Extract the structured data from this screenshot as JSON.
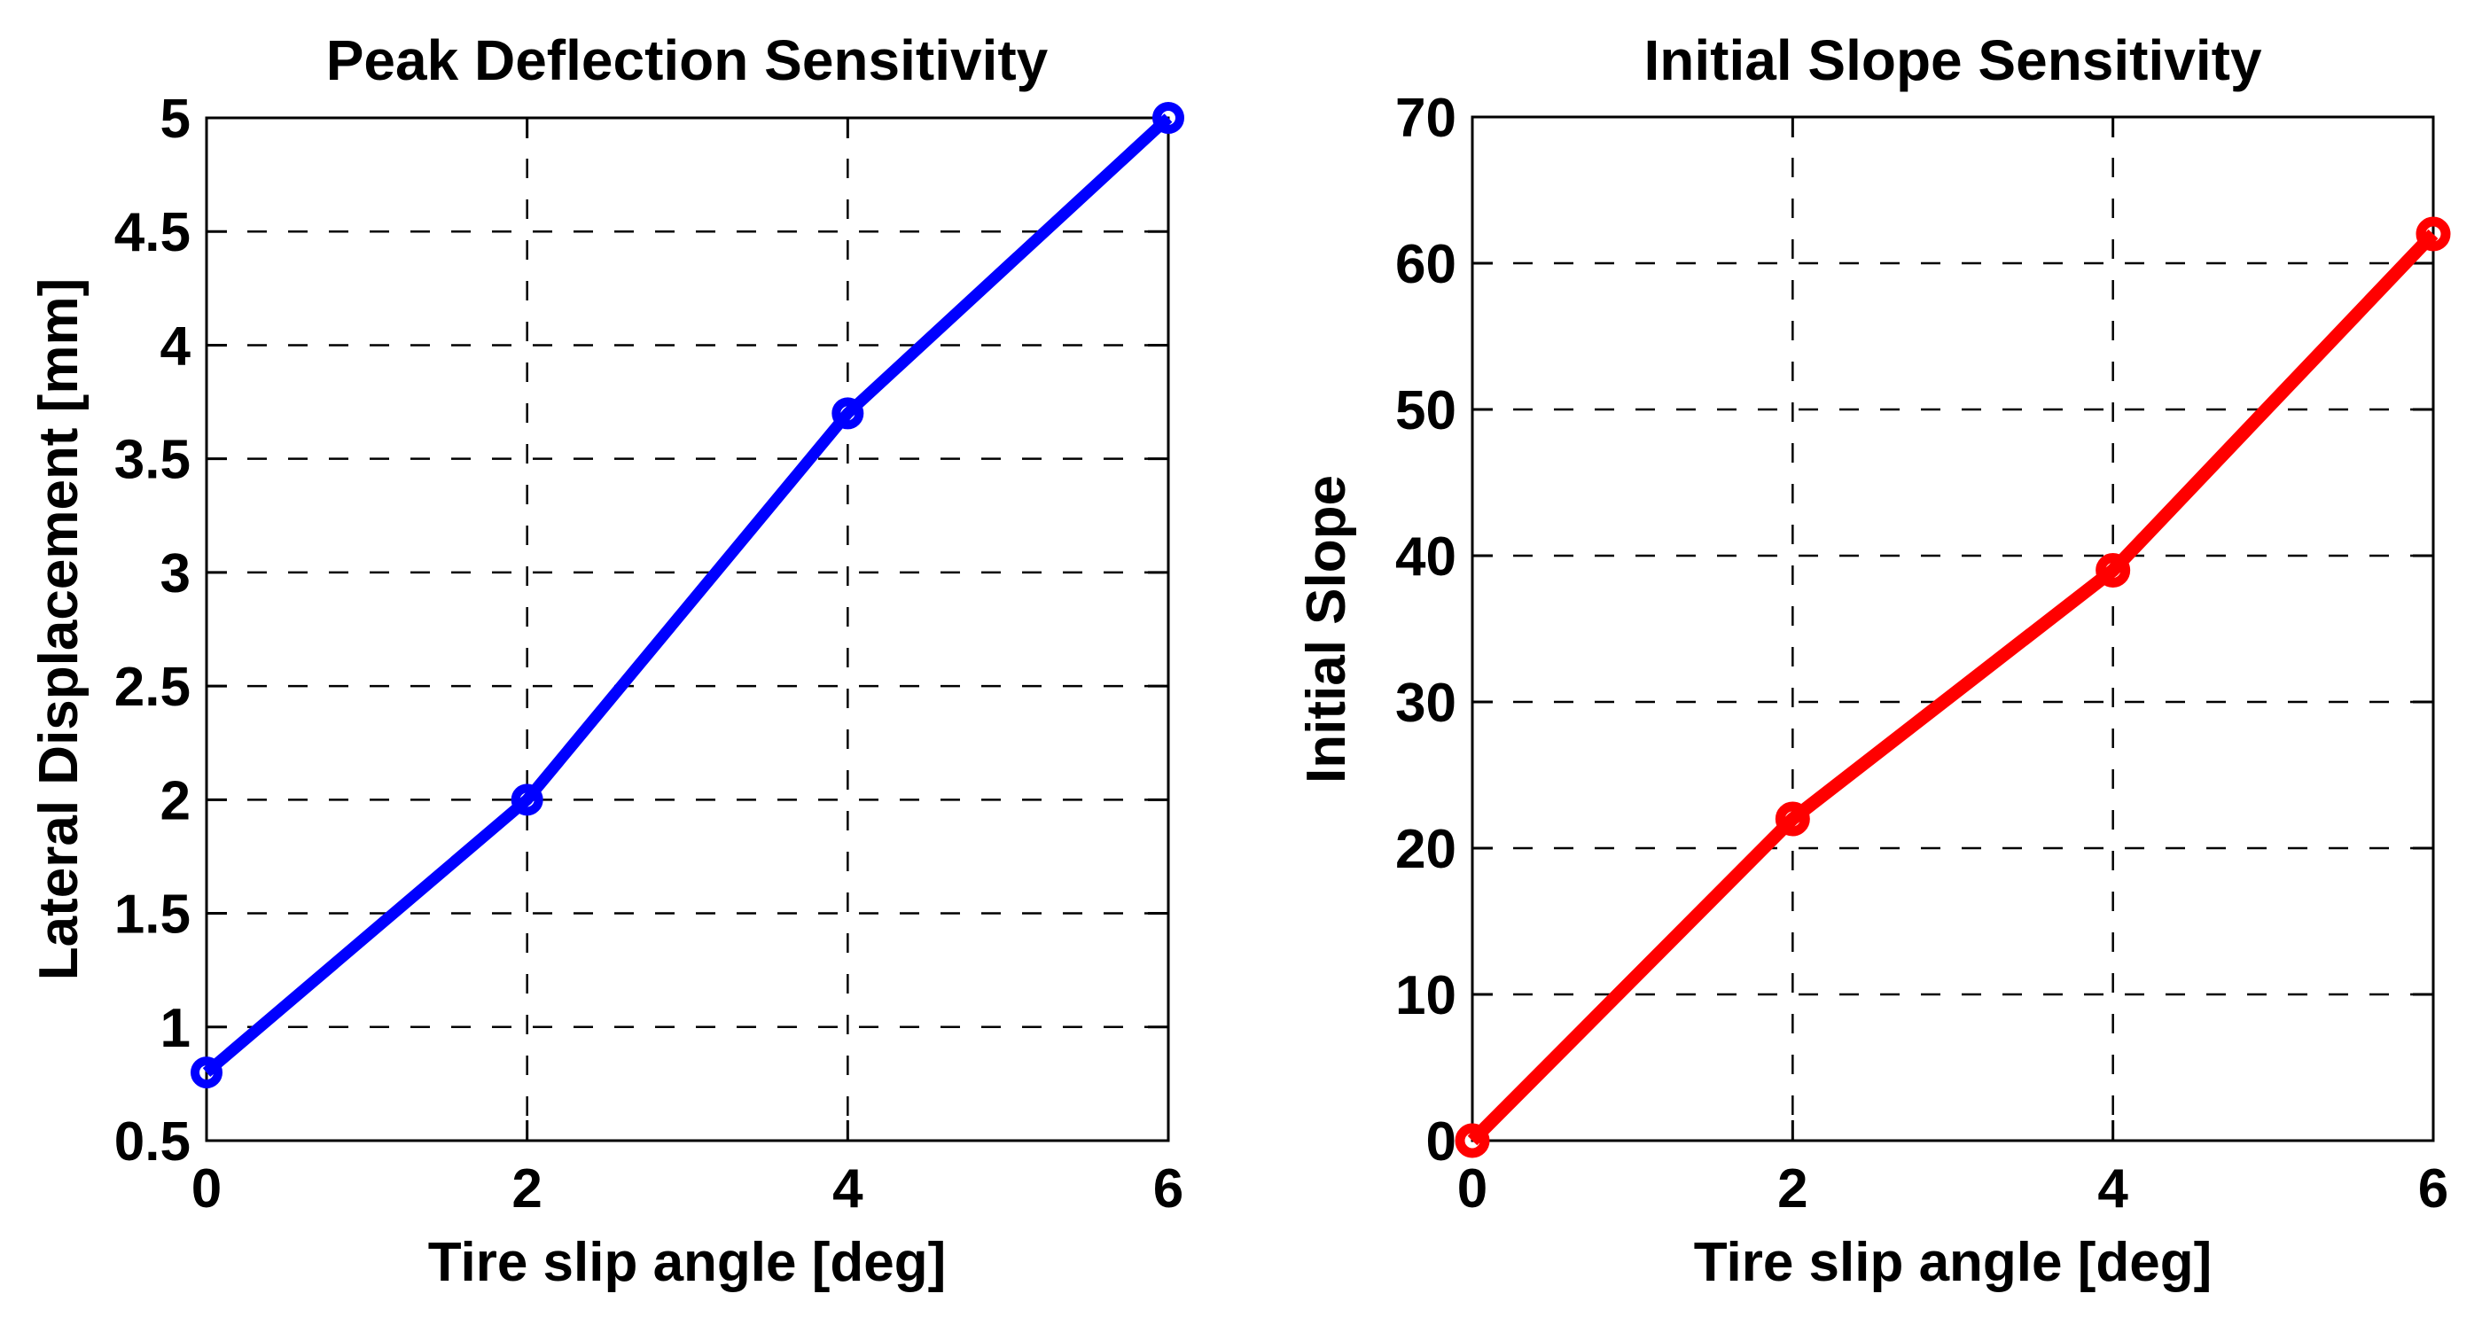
{
  "figure": {
    "background": "#ffffff",
    "axis_color": "#000000",
    "grid_color": "#000000"
  },
  "chart_data": [
    {
      "type": "line",
      "title": "Peak Deflection Sensitivity",
      "xlabel": "Tire slip angle [deg]",
      "ylabel": "Lateral Displacement [mm]",
      "x": [
        0,
        2,
        4,
        6
      ],
      "y": [
        0.8,
        2.0,
        3.7,
        5.0
      ],
      "xlim": [
        0,
        6
      ],
      "ylim": [
        0.5,
        5
      ],
      "xticks": [
        0,
        2,
        4,
        6
      ],
      "yticks": [
        0.5,
        1,
        1.5,
        2,
        2.5,
        3,
        3.5,
        4,
        4.5,
        5
      ],
      "grid": true,
      "legend": null,
      "line_color": "#0000ff",
      "line_width": 13,
      "marker": "o"
    },
    {
      "type": "line",
      "title": "Initial Slope Sensitivity",
      "xlabel": "Tire slip angle [deg]",
      "ylabel": "Initial Slope",
      "x": [
        0,
        2,
        4,
        6
      ],
      "y": [
        0,
        22,
        39,
        62
      ],
      "xlim": [
        0,
        6
      ],
      "ylim": [
        0,
        70
      ],
      "xticks": [
        0,
        2,
        4,
        6
      ],
      "yticks": [
        0,
        10,
        20,
        30,
        40,
        50,
        60,
        70
      ],
      "grid": true,
      "legend": null,
      "line_color": "#ff0000",
      "line_width": 15,
      "marker": "o"
    }
  ]
}
